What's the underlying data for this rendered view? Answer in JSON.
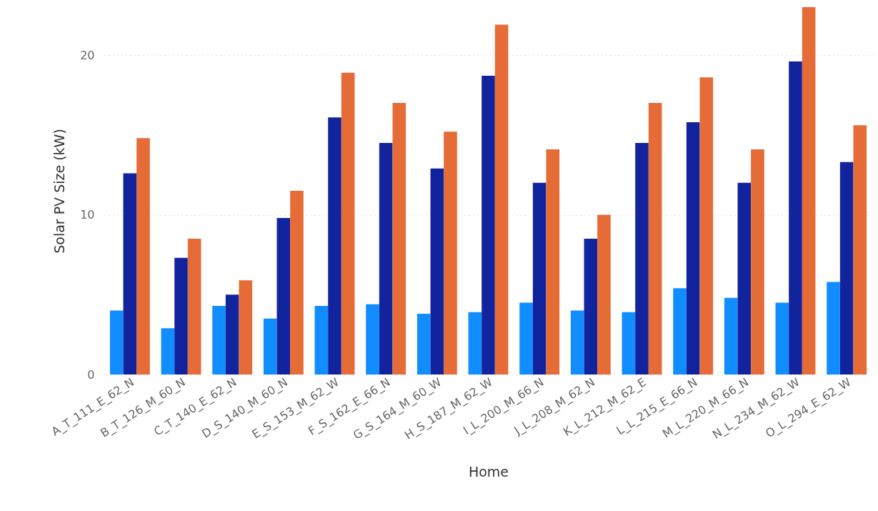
{
  "chart_data": {
    "type": "bar",
    "xlabel": "Home",
    "ylabel": "Solar PV Size (kW)",
    "categories": [
      "A_T_111_E_62_N",
      "B_T_126_M_60_N",
      "C_T_140_E_62_N",
      "D_S_140_M_60_N",
      "E_S_153_M_62_W",
      "F_S_162_E_66_N",
      "G_S_164_M_60_W",
      "H_S_187_M_62_W",
      "I_L_200_M_66_N",
      "J_L_208_M_62_N",
      "K_L_212_M_62_E",
      "L_L_215_E_66_N",
      "M_L_220_M_66_N",
      "N_L_234_M_62_W",
      "O_L_294_E_62_W"
    ],
    "series": [
      {
        "color": "#118dff",
        "values": [
          4.0,
          2.9,
          4.3,
          3.5,
          4.3,
          4.4,
          3.8,
          3.9,
          4.5,
          4.0,
          3.9,
          5.4,
          4.8,
          4.5,
          5.8
        ]
      },
      {
        "color": "#12239e",
        "values": [
          12.6,
          7.3,
          5.0,
          9.8,
          16.1,
          14.5,
          12.9,
          18.7,
          12.0,
          8.5,
          14.5,
          15.8,
          12.0,
          19.6,
          13.3
        ]
      },
      {
        "color": "#e66c37",
        "values": [
          14.8,
          8.5,
          5.9,
          11.5,
          18.9,
          17.0,
          15.2,
          21.9,
          14.1,
          10.0,
          17.0,
          18.6,
          14.1,
          23.0,
          15.6
        ]
      }
    ],
    "ylim": [
      0,
      23
    ],
    "yticks": [
      0,
      10,
      20
    ],
    "grid": "y"
  }
}
